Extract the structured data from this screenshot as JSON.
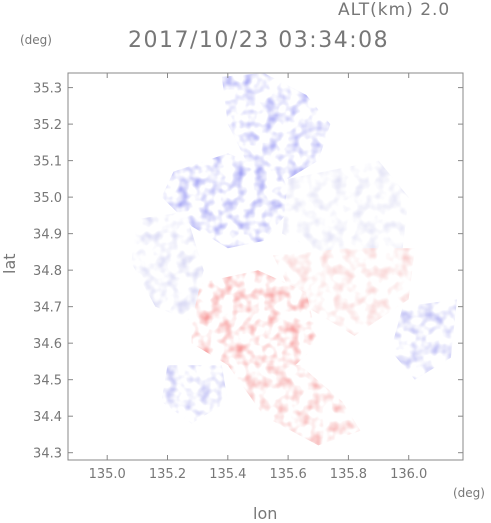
{
  "header": {
    "altitude_label": "ALT(km) 2.0",
    "timestamp": "2017/10/23 03:34:08"
  },
  "chart_data": {
    "type": "heatmap",
    "title": "2017/10/23 03:34:08",
    "xlabel": "lon",
    "ylabel": "lat",
    "x_unit": "(deg)",
    "y_unit": "(deg)",
    "xlim": [
      134.87,
      136.18
    ],
    "ylim": [
      34.28,
      35.34
    ],
    "x_ticks": [
      "135.0",
      "135.2",
      "135.4",
      "135.6",
      "135.8",
      "136.0"
    ],
    "y_ticks": [
      "34.3",
      "34.4",
      "34.5",
      "34.6",
      "34.7",
      "34.8",
      "34.9",
      "35.0",
      "35.1",
      "35.2",
      "35.3"
    ],
    "colors": {
      "approaching": "#7b7bf2",
      "receding": "#f47d7d",
      "neutral": "#e6e6f4"
    },
    "regions": [
      {
        "name": "north-blue",
        "color": "#8a8af2",
        "points": [
          [
            135.38,
            35.33
          ],
          [
            135.52,
            35.34
          ],
          [
            135.66,
            35.28
          ],
          [
            135.74,
            35.2
          ],
          [
            135.7,
            35.1
          ],
          [
            135.6,
            35.05
          ],
          [
            135.46,
            35.1
          ],
          [
            135.4,
            35.2
          ]
        ]
      },
      {
        "name": "northwest-blue",
        "color": "#8080f0",
        "points": [
          [
            135.22,
            35.07
          ],
          [
            135.4,
            35.12
          ],
          [
            135.58,
            35.06
          ],
          [
            135.62,
            34.98
          ],
          [
            135.52,
            34.88
          ],
          [
            135.4,
            34.86
          ],
          [
            135.28,
            34.92
          ],
          [
            135.18,
            35.0
          ]
        ]
      },
      {
        "name": "east-neutral",
        "color": "#d8d8f2",
        "points": [
          [
            135.6,
            35.05
          ],
          [
            135.9,
            35.1
          ],
          [
            136.0,
            35.0
          ],
          [
            135.98,
            34.86
          ],
          [
            135.7,
            34.85
          ],
          [
            135.58,
            34.9
          ]
        ]
      },
      {
        "name": "east-pink",
        "color": "#f6c0c0",
        "points": [
          [
            135.55,
            34.84
          ],
          [
            135.8,
            34.86
          ],
          [
            136.02,
            34.86
          ],
          [
            136.0,
            34.72
          ],
          [
            135.82,
            34.62
          ],
          [
            135.62,
            34.72
          ]
        ]
      },
      {
        "name": "center-red",
        "color": "#f47a7a",
        "points": [
          [
            135.28,
            34.76
          ],
          [
            135.5,
            34.8
          ],
          [
            135.66,
            34.74
          ],
          [
            135.7,
            34.6
          ],
          [
            135.6,
            34.52
          ],
          [
            135.4,
            34.54
          ],
          [
            135.28,
            34.6
          ]
        ]
      },
      {
        "name": "south-red",
        "color": "#f39090",
        "points": [
          [
            135.4,
            34.54
          ],
          [
            135.64,
            34.54
          ],
          [
            135.78,
            34.44
          ],
          [
            135.84,
            34.36
          ],
          [
            135.7,
            34.32
          ],
          [
            135.52,
            34.4
          ]
        ]
      },
      {
        "name": "west-lightblue",
        "color": "#c6c6ef",
        "points": [
          [
            135.1,
            34.94
          ],
          [
            135.26,
            34.96
          ],
          [
            135.32,
            34.8
          ],
          [
            135.28,
            34.66
          ],
          [
            135.16,
            34.7
          ],
          [
            135.08,
            34.82
          ]
        ]
      },
      {
        "name": "southwest-blue",
        "color": "#a0a0ee",
        "points": [
          [
            135.2,
            34.54
          ],
          [
            135.38,
            34.54
          ],
          [
            135.4,
            34.44
          ],
          [
            135.28,
            34.38
          ],
          [
            135.18,
            34.44
          ]
        ]
      },
      {
        "name": "southeast-blue",
        "color": "#9a9aee",
        "points": [
          [
            135.98,
            34.7
          ],
          [
            136.16,
            34.72
          ],
          [
            136.14,
            34.56
          ],
          [
            136.02,
            34.5
          ],
          [
            135.94,
            34.58
          ]
        ]
      }
    ]
  }
}
